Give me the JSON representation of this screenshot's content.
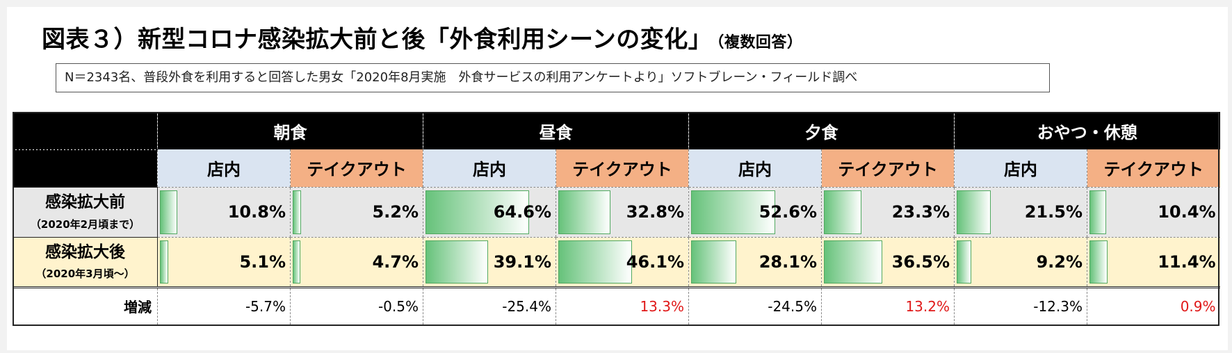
{
  "title": {
    "main": "図表３）新型コロナ感染拡大前と後「外食利用シーンの変化」",
    "sub": "（複数回答）"
  },
  "note": "N＝2343名、普段外食を利用すると回答した男女「2020年8月実施　外食サービスの利用アンケートより」ソフトブレーン・フィールド調べ",
  "chart_data": {
    "type": "table",
    "meals": [
      "朝食",
      "昼食",
      "夕食",
      "おやつ・休憩"
    ],
    "columns": [
      "店内",
      "テイクアウト"
    ],
    "rows": [
      {
        "label": "感染拡大前",
        "sublabel": "（2020年2月頃まで）",
        "values": [
          10.8,
          5.2,
          64.6,
          32.8,
          52.6,
          23.3,
          21.5,
          10.4
        ],
        "display": [
          "10.8%",
          "5.2%",
          "64.6%",
          "32.8%",
          "52.6%",
          "23.3%",
          "21.5%",
          "10.4%"
        ]
      },
      {
        "label": "感染拡大後",
        "sublabel": "（2020年3月頃～）",
        "values": [
          5.1,
          4.7,
          39.1,
          46.1,
          28.1,
          36.5,
          9.2,
          11.4
        ],
        "display": [
          "5.1%",
          "4.7%",
          "39.1%",
          "46.1%",
          "28.1%",
          "36.5%",
          "9.2%",
          "11.4%"
        ]
      }
    ],
    "delta": {
      "label": "増減",
      "values": [
        -5.7,
        -0.5,
        -25.4,
        13.3,
        -24.5,
        13.2,
        -12.3,
        0.9
      ],
      "display": [
        "-5.7%",
        "-0.5%",
        "-25.4%",
        "13.3%",
        "-24.5%",
        "13.2%",
        "-12.3%",
        "0.9%"
      ]
    },
    "bar_scale_max": 80,
    "colors": {
      "bar": "#66c27a",
      "inside_header": "#dae4f1",
      "takeout_header": "#f4b085",
      "before_row": "#e7e7e7",
      "after_row": "#fff3cd",
      "positive_delta": "#e01818"
    }
  }
}
